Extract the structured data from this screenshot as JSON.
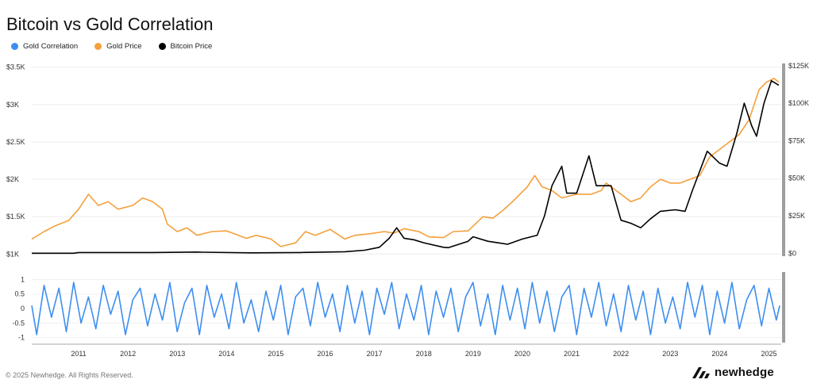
{
  "title": "Bitcoin vs Gold Correlation",
  "legend": [
    {
      "label": "Gold Correlation",
      "color": "#3d8ef0"
    },
    {
      "label": "Gold Price",
      "color": "#f5a03c"
    },
    {
      "label": "Bitcoin Price",
      "color": "#000000"
    }
  ],
  "footer": {
    "copyright": "© 2025 Newhedge. All Rights Reserved.",
    "brand": "newhedge",
    "logo_icon": "newhedge-logo-icon"
  },
  "chart_data": [
    {
      "type": "line",
      "x_ticks": [
        "2011",
        "2012",
        "2013",
        "2014",
        "2015",
        "2016",
        "2017",
        "2018",
        "2019",
        "2020",
        "2021",
        "2022",
        "2023",
        "2024",
        "2025"
      ],
      "x_range": [
        2010.55,
        2025.75
      ],
      "left_axis": {
        "ticks": [
          "$1K",
          "$1.5K",
          "$2K",
          "$2.5K",
          "$3K",
          "$3.5K"
        ],
        "tick_values": [
          1000,
          1500,
          2000,
          2500,
          3000,
          3500
        ],
        "ylim": [
          950,
          3550
        ]
      },
      "right_axis": {
        "ticks": [
          "$0",
          "$25K",
          "$50K",
          "$75K",
          "$100K",
          "$125K"
        ],
        "tick_values": [
          0,
          25000,
          50000,
          75000,
          100000,
          125000
        ],
        "ylim": [
          -3000,
          126500
        ]
      },
      "grid": true,
      "series": [
        {
          "name": "Gold Price",
          "axis": "left",
          "color": "#f5a03c",
          "x": [
            2010.55,
            2010.8,
            2011.0,
            2011.3,
            2011.5,
            2011.7,
            2011.9,
            2012.1,
            2012.3,
            2012.6,
            2012.8,
            2013.0,
            2013.2,
            2013.3,
            2013.5,
            2013.7,
            2013.9,
            2014.2,
            2014.5,
            2014.7,
            2014.9,
            2015.1,
            2015.4,
            2015.6,
            2015.9,
            2016.1,
            2016.3,
            2016.6,
            2016.9,
            2017.1,
            2017.4,
            2017.7,
            2017.9,
            2018.1,
            2018.4,
            2018.6,
            2018.9,
            2019.1,
            2019.4,
            2019.7,
            2019.9,
            2020.1,
            2020.3,
            2020.6,
            2020.75,
            2020.9,
            2021.1,
            2021.3,
            2021.6,
            2021.9,
            2022.1,
            2022.2,
            2022.5,
            2022.7,
            2022.9,
            2023.1,
            2023.3,
            2023.5,
            2023.7,
            2023.9,
            2024.1,
            2024.3,
            2024.5,
            2024.7,
            2024.9,
            2025.1,
            2025.3,
            2025.45,
            2025.6,
            2025.7
          ],
          "y": [
            1200,
            1300,
            1370,
            1450,
            1600,
            1800,
            1650,
            1700,
            1600,
            1650,
            1750,
            1700,
            1600,
            1400,
            1300,
            1350,
            1250,
            1300,
            1310,
            1260,
            1210,
            1250,
            1200,
            1100,
            1150,
            1300,
            1250,
            1330,
            1200,
            1250,
            1270,
            1300,
            1280,
            1340,
            1300,
            1230,
            1220,
            1300,
            1310,
            1500,
            1480,
            1580,
            1700,
            1900,
            2050,
            1900,
            1850,
            1750,
            1800,
            1800,
            1850,
            1950,
            1800,
            1700,
            1750,
            1900,
            2000,
            1950,
            1950,
            2000,
            2050,
            2300,
            2400,
            2500,
            2600,
            2800,
            3200,
            3300,
            3350,
            3300
          ]
        },
        {
          "name": "Bitcoin Price",
          "axis": "right",
          "color": "#000000",
          "x": [
            2010.55,
            2011.4,
            2011.5,
            2012.0,
            2013.0,
            2013.9,
            2014.0,
            2015.0,
            2016.0,
            2016.9,
            2017.3,
            2017.6,
            2017.8,
            2017.95,
            2018.1,
            2018.3,
            2018.5,
            2018.9,
            2019.0,
            2019.4,
            2019.5,
            2019.8,
            2020.0,
            2020.2,
            2020.5,
            2020.8,
            2020.95,
            2021.1,
            2021.3,
            2021.4,
            2021.6,
            2021.85,
            2022.0,
            2022.3,
            2022.5,
            2022.7,
            2022.9,
            2023.1,
            2023.3,
            2023.6,
            2023.8,
            2023.95,
            2024.1,
            2024.25,
            2024.5,
            2024.65,
            2024.85,
            2025.0,
            2025.15,
            2025.25,
            2025.4,
            2025.55,
            2025.7
          ],
          "y": [
            0,
            0,
            500,
            500,
            500,
            800,
            700,
            300,
            500,
            1000,
            2000,
            4000,
            10000,
            17000,
            10000,
            9000,
            7000,
            4000,
            3700,
            8000,
            11000,
            8000,
            7000,
            6000,
            9500,
            12000,
            25000,
            45000,
            58000,
            40000,
            40000,
            65000,
            45000,
            45000,
            22000,
            20000,
            17000,
            23000,
            28000,
            29000,
            28000,
            42000,
            55000,
            68000,
            60000,
            58000,
            80000,
            100000,
            85000,
            78000,
            100000,
            115000,
            112000
          ]
        },
        {
          "name": "Gold Correlation",
          "axis": "corr",
          "color": "#3d8ef0",
          "ylim": [
            -1.15,
            1.15
          ],
          "ticks": [
            "1",
            "0.5",
            "0",
            "-0.5",
            "-1"
          ],
          "tick_values": [
            1,
            0.5,
            0,
            -0.5,
            -1
          ],
          "x": [
            2010.55,
            2010.65,
            2010.8,
            2010.95,
            2011.1,
            2011.25,
            2011.4,
            2011.55,
            2011.7,
            2011.85,
            2012.0,
            2012.15,
            2012.3,
            2012.45,
            2012.6,
            2012.75,
            2012.9,
            2013.05,
            2013.2,
            2013.35,
            2013.5,
            2013.65,
            2013.8,
            2013.95,
            2014.1,
            2014.25,
            2014.4,
            2014.55,
            2014.7,
            2014.85,
            2015.0,
            2015.15,
            2015.3,
            2015.45,
            2015.6,
            2015.75,
            2015.9,
            2016.05,
            2016.2,
            2016.35,
            2016.5,
            2016.65,
            2016.8,
            2016.95,
            2017.1,
            2017.25,
            2017.4,
            2017.55,
            2017.7,
            2017.85,
            2018.0,
            2018.15,
            2018.3,
            2018.45,
            2018.6,
            2018.75,
            2018.9,
            2019.05,
            2019.2,
            2019.35,
            2019.5,
            2019.65,
            2019.8,
            2019.95,
            2020.1,
            2020.25,
            2020.4,
            2020.55,
            2020.7,
            2020.85,
            2021.0,
            2021.15,
            2021.3,
            2021.45,
            2021.6,
            2021.75,
            2021.9,
            2022.05,
            2022.2,
            2022.35,
            2022.5,
            2022.65,
            2022.8,
            2022.95,
            2023.1,
            2023.25,
            2023.4,
            2023.55,
            2023.7,
            2023.85,
            2024.0,
            2024.15,
            2024.3,
            2024.45,
            2024.6,
            2024.75,
            2024.9,
            2025.05,
            2025.2,
            2025.35,
            2025.5,
            2025.65,
            2025.72
          ],
          "y": [
            0.1,
            -0.9,
            0.8,
            -0.3,
            0.7,
            -0.8,
            0.9,
            -0.5,
            0.4,
            -0.7,
            0.8,
            -0.2,
            0.6,
            -0.9,
            0.3,
            0.7,
            -0.6,
            0.5,
            -0.4,
            0.9,
            -0.8,
            0.2,
            0.7,
            -0.9,
            0.8,
            -0.3,
            0.5,
            -0.7,
            0.9,
            -0.5,
            0.3,
            -0.8,
            0.6,
            -0.4,
            0.8,
            -0.9,
            0.4,
            0.7,
            -0.6,
            0.9,
            -0.3,
            0.5,
            -0.8,
            0.8,
            -0.5,
            0.6,
            -0.9,
            0.7,
            -0.2,
            0.9,
            -0.7,
            0.5,
            -0.4,
            0.8,
            -0.9,
            0.6,
            -0.3,
            0.7,
            -0.8,
            0.4,
            0.9,
            -0.6,
            0.5,
            -0.9,
            0.8,
            -0.4,
            0.7,
            -0.7,
            0.9,
            -0.5,
            0.6,
            -0.8,
            0.4,
            0.8,
            -0.9,
            0.7,
            -0.3,
            0.9,
            -0.6,
            0.5,
            -0.8,
            0.8,
            -0.4,
            0.6,
            -0.9,
            0.7,
            -0.5,
            0.4,
            -0.7,
            0.9,
            -0.3,
            0.8,
            -0.9,
            0.6,
            -0.5,
            0.9,
            -0.7,
            0.3,
            0.8,
            -0.6,
            0.7,
            -0.4,
            0.1
          ]
        }
      ]
    }
  ]
}
